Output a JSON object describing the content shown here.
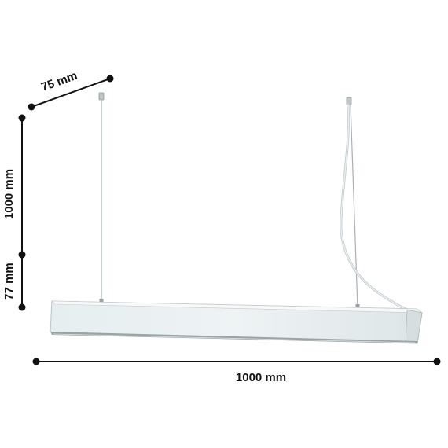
{
  "dimensions": {
    "depth": "75 mm",
    "suspension_length": "1000 mm",
    "height": "77 mm",
    "length": "1000 mm"
  },
  "colors": {
    "dimension_line": "#111111",
    "fixture_body": "#e4ecee",
    "fixture_top": "#f6f8f8",
    "fixture_shadow": "#9aa3a6",
    "cable": "#c8d0d2"
  }
}
